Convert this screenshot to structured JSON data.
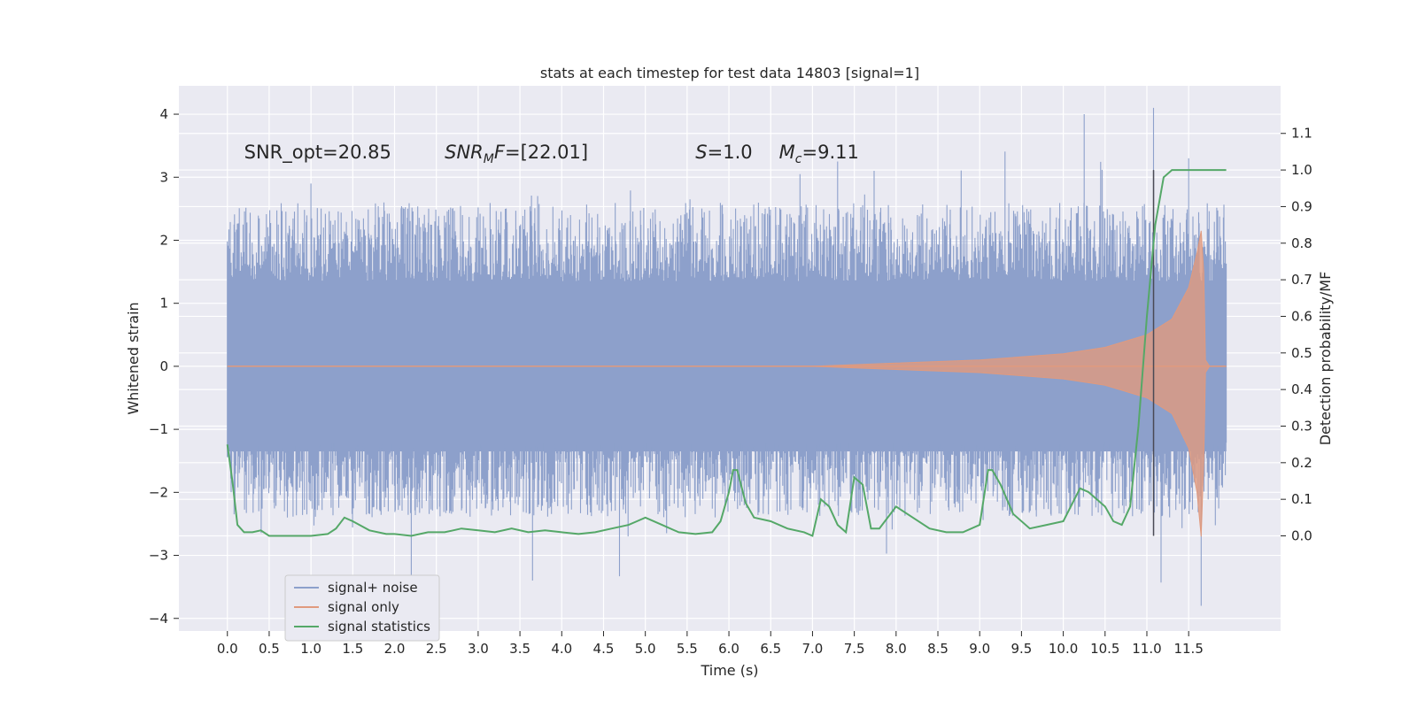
{
  "chart_data": {
    "type": "line",
    "title": "stats at each timestep for test data 14803 [signal=1]",
    "xlabel": "Time (s)",
    "ylabel": "Whitened strain",
    "y2label": "Detection probability/MF",
    "xlim": [
      -0.58,
      12.6
    ],
    "ylim": [
      -4.2,
      4.45
    ],
    "y2lim": [
      -0.26,
      1.23
    ],
    "x_ticks": [
      "0.0",
      "0.5",
      "1.0",
      "1.5",
      "2.0",
      "2.5",
      "3.0",
      "3.5",
      "4.0",
      "4.5",
      "5.0",
      "5.5",
      "6.0",
      "6.5",
      "7.0",
      "7.5",
      "8.0",
      "8.5",
      "9.0",
      "9.5",
      "10.0",
      "10.5",
      "11.0",
      "11.5"
    ],
    "y_ticks": [
      "4",
      "3",
      "2",
      "1",
      "0",
      "−1",
      "−2",
      "−3",
      "−4"
    ],
    "y2_ticks": [
      "1.1",
      "1.0",
      "0.9",
      "0.8",
      "0.7",
      "0.6",
      "0.5",
      "0.4",
      "0.3",
      "0.2",
      "0.1",
      "0.0"
    ],
    "grid": true,
    "legend_position": "lower-left",
    "colors": {
      "background": "#eaeaf2",
      "grid": "#ffffff",
      "noise": "#8da0cb",
      "signal": "#e09a7e",
      "stats": "#55a868",
      "marker_line": "#4a4a55"
    },
    "annotations": [
      {
        "label": "SNR_opt=20.85",
        "x": 0.2,
        "y": 3.3
      },
      {
        "label": "SNR_MF=[22.01]",
        "x": 2.6,
        "y": 3.3
      },
      {
        "label": "S=1.0",
        "x": 5.6,
        "y": 3.3
      },
      {
        "label": "M_c=9.11",
        "x": 6.6,
        "y": 3.3
      }
    ],
    "marker_time": 11.08,
    "series": [
      {
        "name": "signal+ noise",
        "x_range": [
          0.0,
          11.95
        ],
        "band_core": [
          -1.35,
          1.35
        ],
        "spike_extremes": {
          "max": 4.1,
          "min": -3.8
        }
      },
      {
        "name": "signal only",
        "x": [
          0.0,
          7.0,
          8.0,
          9.0,
          10.0,
          10.5,
          11.0,
          11.3,
          11.5,
          11.6,
          11.65,
          11.68,
          11.7,
          11.75,
          11.95
        ],
        "y_upper": [
          0.0,
          0.0,
          0.05,
          0.1,
          0.2,
          0.3,
          0.5,
          0.75,
          1.25,
          1.8,
          2.15,
          1.5,
          0.1,
          0.0,
          0.0
        ],
        "y_lower": [
          0.0,
          0.0,
          -0.05,
          -0.1,
          -0.2,
          -0.3,
          -0.5,
          -0.75,
          -1.3,
          -2.0,
          -2.7,
          -1.5,
          -0.1,
          0.0,
          0.0
        ]
      },
      {
        "name": "signal statistics",
        "axis": "right",
        "x": [
          0.0,
          0.06,
          0.12,
          0.2,
          0.3,
          0.4,
          0.5,
          0.6,
          0.8,
          1.0,
          1.2,
          1.3,
          1.4,
          1.5,
          1.7,
          1.9,
          2.0,
          2.2,
          2.4,
          2.6,
          2.8,
          3.0,
          3.2,
          3.4,
          3.6,
          3.8,
          4.0,
          4.2,
          4.4,
          4.6,
          4.8,
          4.9,
          5.0,
          5.2,
          5.4,
          5.6,
          5.8,
          5.9,
          6.0,
          6.05,
          6.1,
          6.2,
          6.3,
          6.5,
          6.7,
          6.9,
          7.0,
          7.1,
          7.2,
          7.3,
          7.4,
          7.5,
          7.6,
          7.7,
          7.8,
          8.0,
          8.2,
          8.4,
          8.6,
          8.8,
          9.0,
          9.1,
          9.15,
          9.25,
          9.4,
          9.6,
          9.8,
          10.0,
          10.2,
          10.3,
          10.5,
          10.6,
          10.7,
          10.8,
          10.9,
          11.0,
          11.1,
          11.2,
          11.3,
          11.5,
          11.7,
          11.95
        ],
        "y": [
          0.25,
          0.15,
          0.03,
          0.01,
          0.01,
          0.015,
          0.0,
          0.0,
          0.0,
          0.0,
          0.005,
          0.02,
          0.05,
          0.04,
          0.015,
          0.005,
          0.005,
          0.0,
          0.01,
          0.01,
          0.02,
          0.015,
          0.01,
          0.02,
          0.01,
          0.015,
          0.01,
          0.005,
          0.01,
          0.02,
          0.03,
          0.04,
          0.05,
          0.03,
          0.01,
          0.005,
          0.01,
          0.04,
          0.12,
          0.18,
          0.18,
          0.09,
          0.05,
          0.04,
          0.02,
          0.01,
          0.0,
          0.1,
          0.08,
          0.03,
          0.01,
          0.16,
          0.14,
          0.02,
          0.02,
          0.08,
          0.05,
          0.02,
          0.01,
          0.01,
          0.03,
          0.18,
          0.18,
          0.14,
          0.06,
          0.02,
          0.03,
          0.04,
          0.13,
          0.12,
          0.08,
          0.04,
          0.03,
          0.08,
          0.3,
          0.6,
          0.85,
          0.98,
          1.0,
          1.0,
          1.0,
          1.0
        ]
      }
    ]
  },
  "legend": {
    "items": [
      {
        "label": "signal+ noise",
        "color": "#8da0cb"
      },
      {
        "label": "signal only",
        "color": "#e09a7e"
      },
      {
        "label": "signal statistics",
        "color": "#55a868"
      }
    ]
  }
}
